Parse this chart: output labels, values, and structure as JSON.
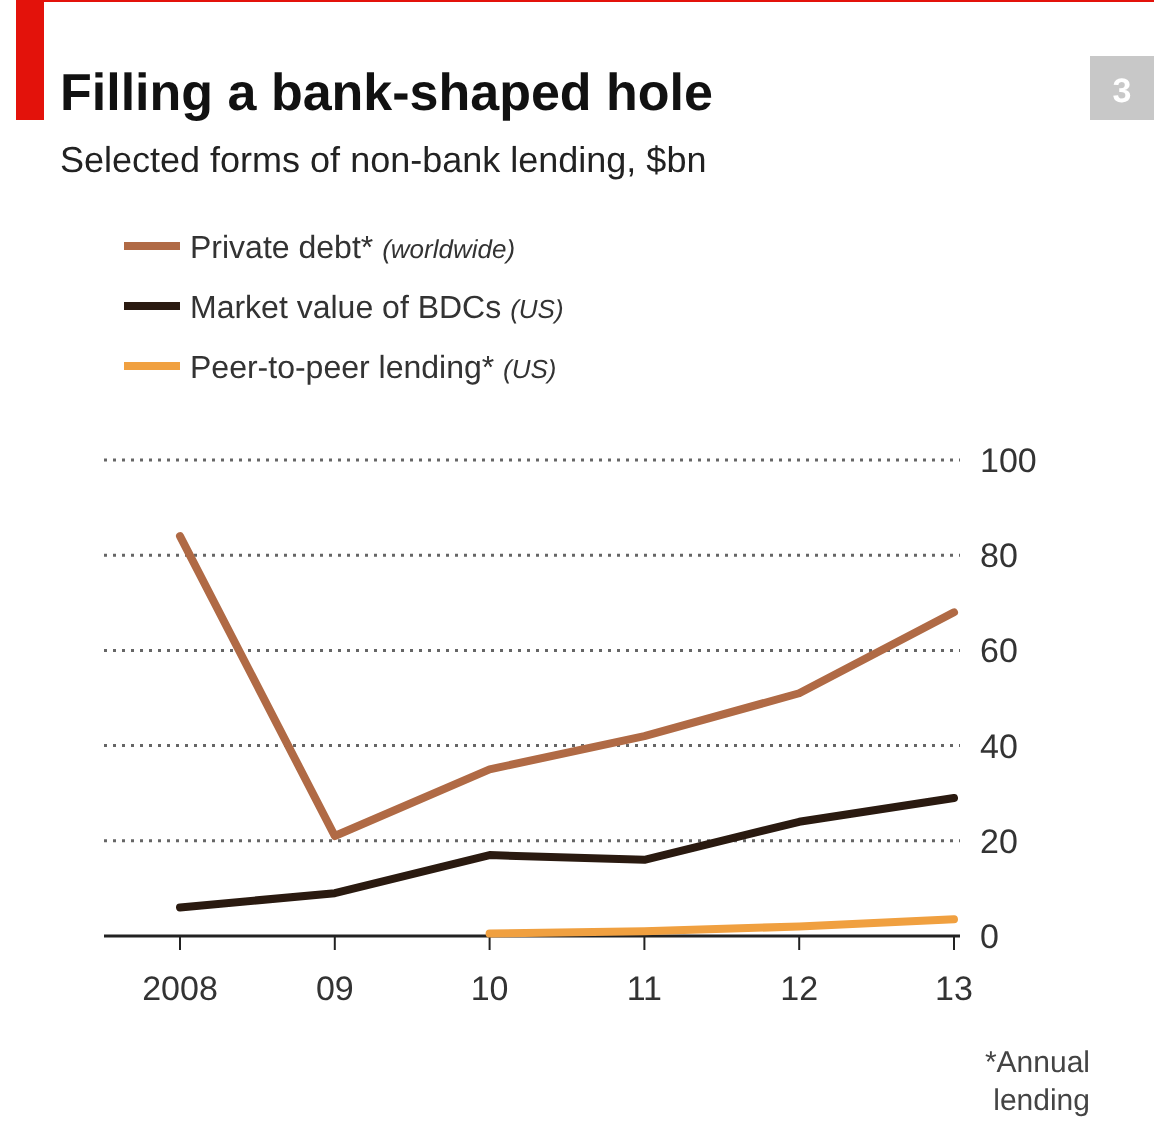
{
  "chart_data": {
    "type": "line",
    "title": "Filling a bank-shaped hole",
    "subtitle": "Selected forms of non-bank lending, $bn",
    "categories": [
      "2008",
      "09",
      "10",
      "11",
      "12",
      "13"
    ],
    "series": [
      {
        "name": "Private debt* (worldwide)",
        "color": "#b06a45",
        "values": [
          84,
          21,
          35,
          42,
          51,
          68
        ]
      },
      {
        "name": "Market value of BDCs (US)",
        "color": "#2a1a10",
        "values": [
          6,
          9,
          17,
          16,
          24,
          29
        ]
      },
      {
        "name": "Peer-to-peer lending* (US)",
        "color": "#f0a040",
        "values": [
          null,
          null,
          0.5,
          1,
          2,
          3.5
        ]
      }
    ],
    "ylim": [
      0,
      100
    ],
    "yticks": [
      0,
      20,
      40,
      60,
      80,
      100
    ],
    "grid": "y",
    "legend": "top left",
    "marker": "none",
    "line_style": "solid",
    "annotations": [
      "3",
      "*Annual lending"
    ]
  }
}
